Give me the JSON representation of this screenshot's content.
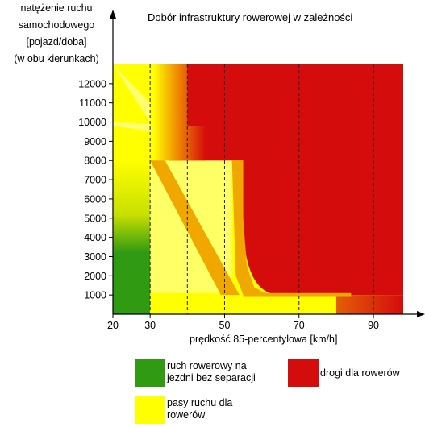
{
  "chart_data": {
    "type": "heatmap",
    "title": "Dobór infrastruktury rowerowej w zależności",
    "xlabel": "prędkość 85-percentylowa [km/h]",
    "ylabel_lines": [
      "natężenie ruchu",
      "samochodowego",
      "[pojazd/doba]",
      "(w obu kierunkach)"
    ],
    "x_ticks": [
      20,
      30,
      50,
      70,
      90
    ],
    "y_ticks": [
      1000,
      2000,
      3000,
      4000,
      5000,
      6000,
      7000,
      8000,
      9000,
      10000,
      11000,
      12000
    ],
    "xlim": [
      20,
      98
    ],
    "ylim": [
      0,
      13000
    ],
    "dashed_x": [
      30,
      40,
      50,
      70,
      90
    ],
    "zones": [
      {
        "name": "ruch rowerowy na jezdni bez separacji",
        "color": "#2f9a12"
      },
      {
        "name": "pasy ruchu dla rowerów",
        "color": "#ffff00"
      },
      {
        "name": "drogi dla rowerów",
        "color": "#d40c0c"
      }
    ],
    "colors": {
      "green": "#2f9a12",
      "yellow": "#ffff00",
      "lightyellow": "#ffff66",
      "orange": "#f0a800",
      "red": "#d40c0c"
    }
  },
  "legend": {
    "green_label_line1": "ruch rowerowy na",
    "green_label_line2": "jezdni bez separacji",
    "red_label": "drogi dla rowerów",
    "yellow_label_line1": "pasy ruchu dla",
    "yellow_label_line2": "rowerów"
  }
}
